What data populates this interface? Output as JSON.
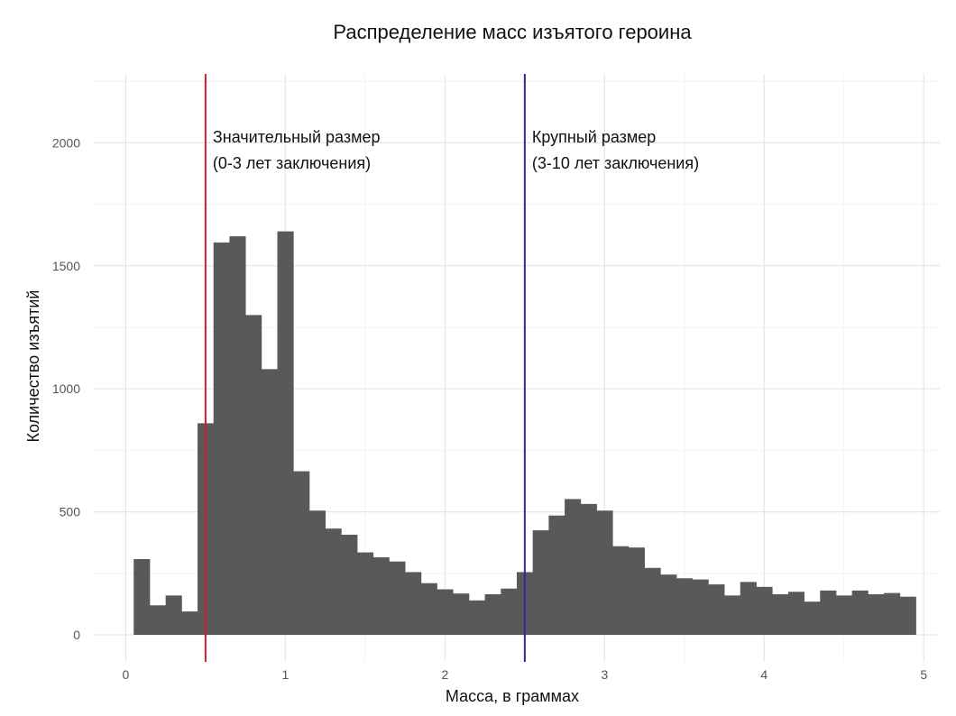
{
  "chart_data": {
    "type": "bar",
    "title": "Распределение масс изъятого героина",
    "xlabel": "Масса, в граммах",
    "ylabel": "Количество изъятий",
    "xlim": [
      -0.2,
      5.1
    ],
    "ylim": [
      -110,
      2280
    ],
    "grid": true,
    "legend": "none",
    "bin_width": 0.1,
    "x_ticks": [
      0,
      1,
      2,
      3,
      4,
      5
    ],
    "y_ticks": [
      0,
      500,
      1000,
      1500,
      2000
    ],
    "bins_start": [
      0.05,
      0.15,
      0.25,
      0.35,
      0.45,
      0.55,
      0.65,
      0.75,
      0.85,
      0.95,
      1.05,
      1.15,
      1.25,
      1.35,
      1.45,
      1.55,
      1.65,
      1.75,
      1.85,
      1.95,
      2.05,
      2.15,
      2.25,
      2.35,
      2.45,
      2.55,
      2.65,
      2.75,
      2.85,
      2.95,
      3.05,
      3.15,
      3.25,
      3.35,
      3.45,
      3.55,
      3.65,
      3.75,
      3.85,
      3.95,
      4.05,
      4.15,
      4.25,
      4.35,
      4.45,
      4.55,
      4.65,
      4.75,
      4.85
    ],
    "values": [
      308,
      120,
      160,
      95,
      860,
      1595,
      1620,
      1300,
      1080,
      1640,
      665,
      505,
      432,
      407,
      335,
      315,
      298,
      255,
      210,
      185,
      168,
      140,
      165,
      188,
      255,
      425,
      485,
      552,
      532,
      505,
      360,
      355,
      272,
      245,
      230,
      225,
      205,
      160,
      215,
      195,
      165,
      175,
      135,
      180,
      160,
      180,
      165,
      170,
      155
    ],
    "bar_color": "#595959",
    "vlines": [
      {
        "x": 0.5,
        "color": "#cc2222",
        "label_line1": "Значительный размер",
        "label_line2": "(0-3 лет заключения)"
      },
      {
        "x": 2.5,
        "color": "#2a2aa0",
        "label_line1": "Крупный размер",
        "label_line2": "(3-10 лет заключения)"
      }
    ]
  }
}
